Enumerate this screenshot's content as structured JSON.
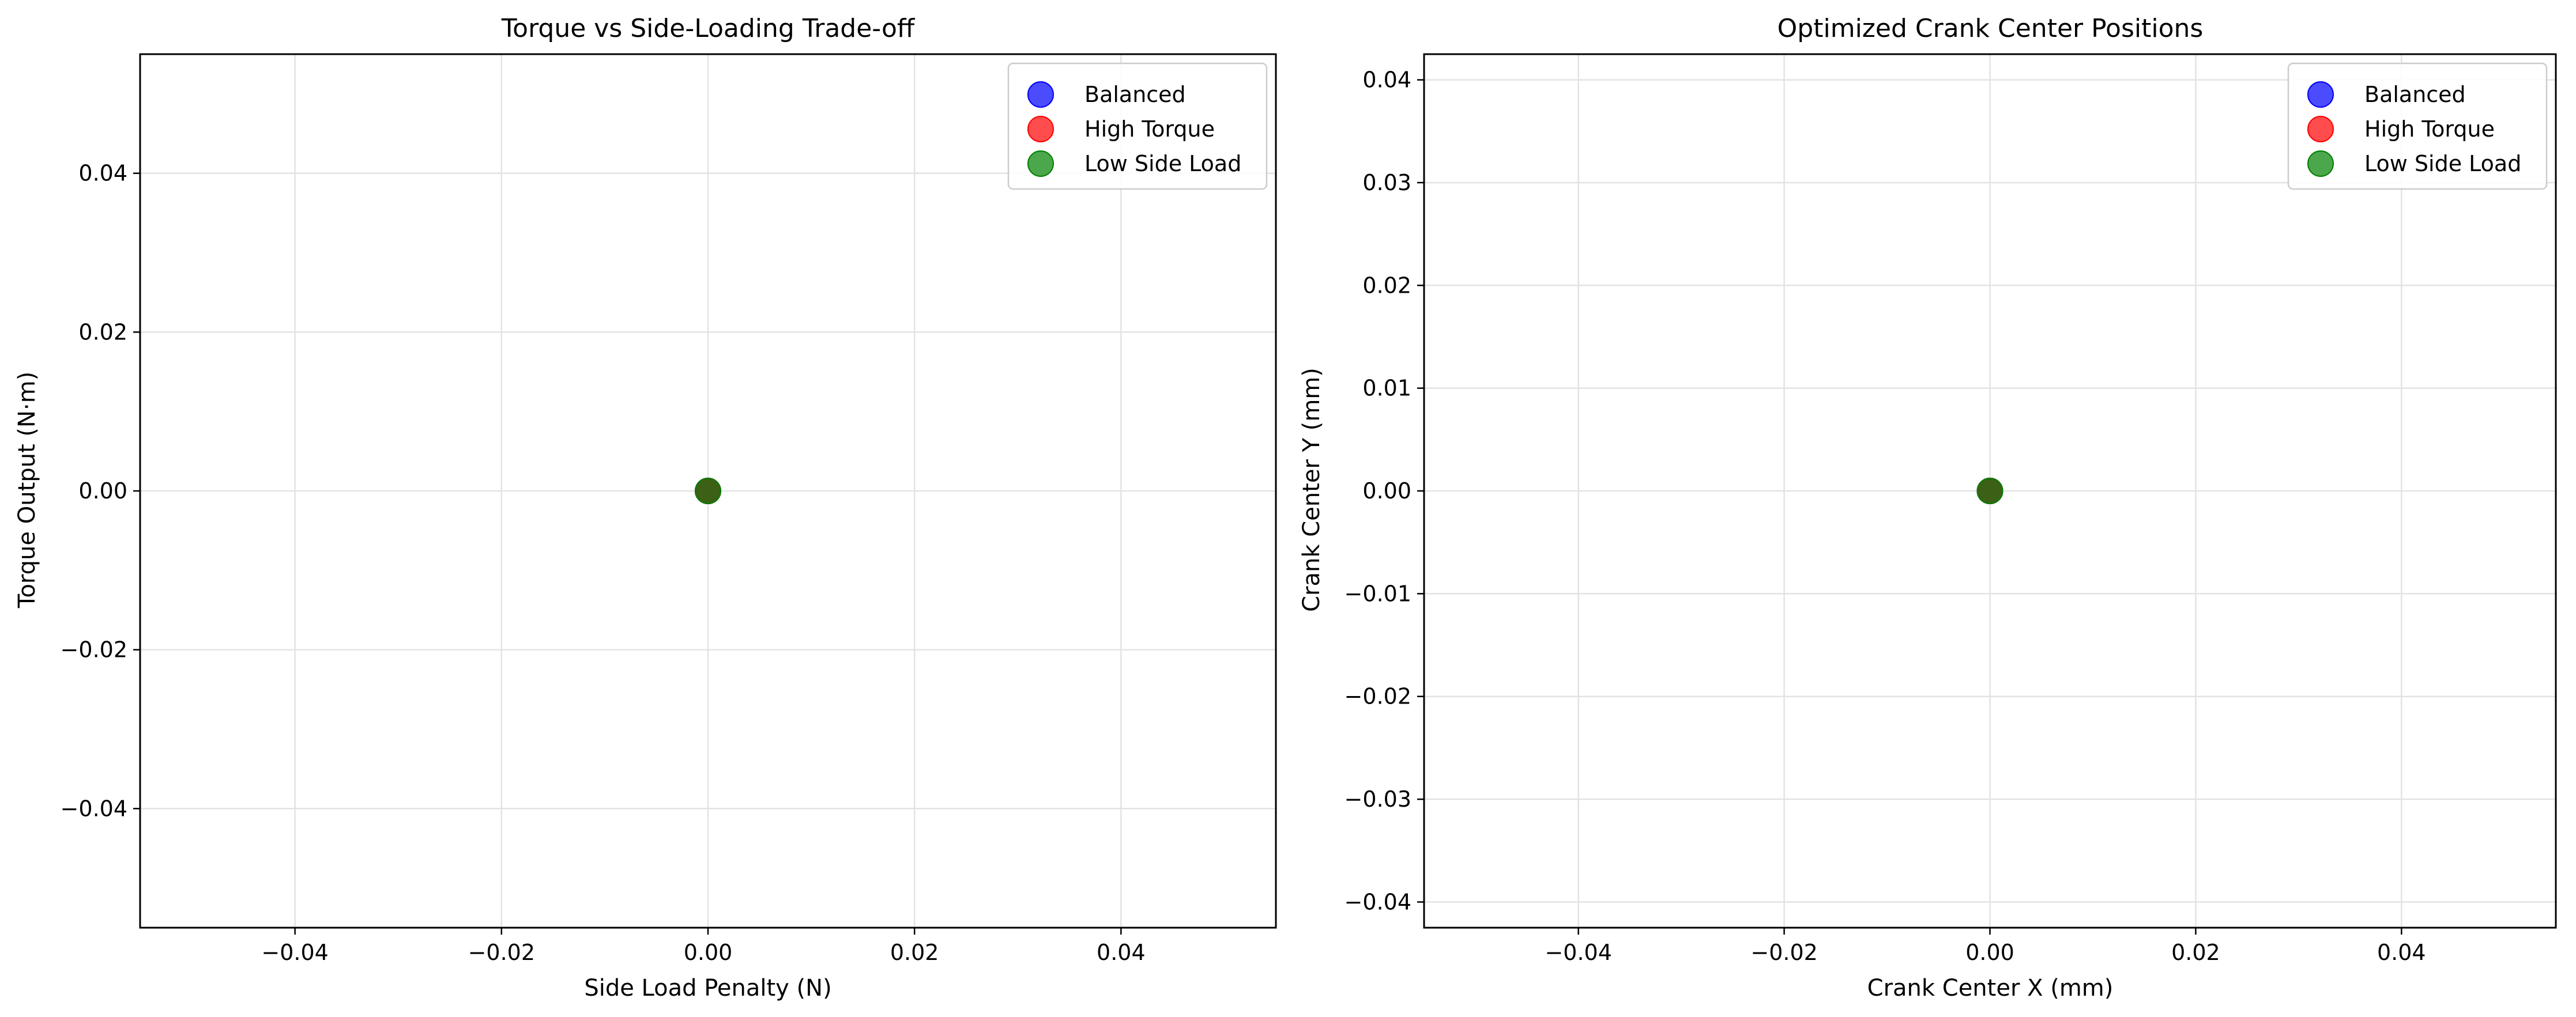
{
  "chart_data": [
    {
      "type": "scatter",
      "title": "Torque vs Side-Loading Trade-off",
      "xlabel": "Side Load Penalty (N)",
      "ylabel": "Torque Output (N·m)",
      "xlim": [
        -0.055,
        0.055
      ],
      "ylim": [
        -0.055,
        0.055
      ],
      "xticks": [
        -0.04,
        -0.02,
        0.0,
        0.02,
        0.04
      ],
      "xtick_labels": [
        "−0.04",
        "−0.02",
        "0.00",
        "0.02",
        "0.04"
      ],
      "yticks": [
        -0.04,
        -0.02,
        0.0,
        0.02,
        0.04
      ],
      "ytick_labels": [
        "−0.04",
        "−0.02",
        "0.00",
        "0.02",
        "0.04"
      ],
      "grid": true,
      "legend_position": "top-right",
      "series": [
        {
          "name": "Balanced",
          "color": "#0000ff",
          "points": [
            {
              "x": 0.0,
              "y": 0.0
            }
          ]
        },
        {
          "name": "High Torque",
          "color": "#ff0000",
          "points": [
            {
              "x": 0.0,
              "y": 0.0
            }
          ]
        },
        {
          "name": "Low Side Load",
          "color": "#008000",
          "points": [
            {
              "x": 0.0,
              "y": 0.0
            }
          ]
        }
      ]
    },
    {
      "type": "scatter",
      "title": "Optimized Crank Center Positions",
      "xlabel": "Crank Center X (mm)",
      "ylabel": "Crank Center Y (mm)",
      "xlim": [
        -0.055,
        0.055
      ],
      "ylim": [
        -0.0425,
        0.0425
      ],
      "xticks": [
        -0.04,
        -0.02,
        0.0,
        0.02,
        0.04
      ],
      "xtick_labels": [
        "−0.04",
        "−0.02",
        "0.00",
        "0.02",
        "0.04"
      ],
      "yticks": [
        -0.04,
        -0.03,
        -0.02,
        -0.01,
        0.0,
        0.01,
        0.02,
        0.03,
        0.04
      ],
      "ytick_labels": [
        "−0.04",
        "−0.03",
        "−0.02",
        "−0.01",
        "0.00",
        "0.01",
        "0.02",
        "0.03",
        "0.04"
      ],
      "grid": true,
      "legend_position": "top-right",
      "series": [
        {
          "name": "Balanced",
          "color": "#0000ff",
          "points": [
            {
              "x": 0.0,
              "y": 0.0
            }
          ]
        },
        {
          "name": "High Torque",
          "color": "#ff0000",
          "points": [
            {
              "x": 0.0,
              "y": 0.0
            }
          ]
        },
        {
          "name": "Low Side Load",
          "color": "#008000",
          "points": [
            {
              "x": 0.0,
              "y": 0.0
            }
          ]
        }
      ]
    }
  ]
}
